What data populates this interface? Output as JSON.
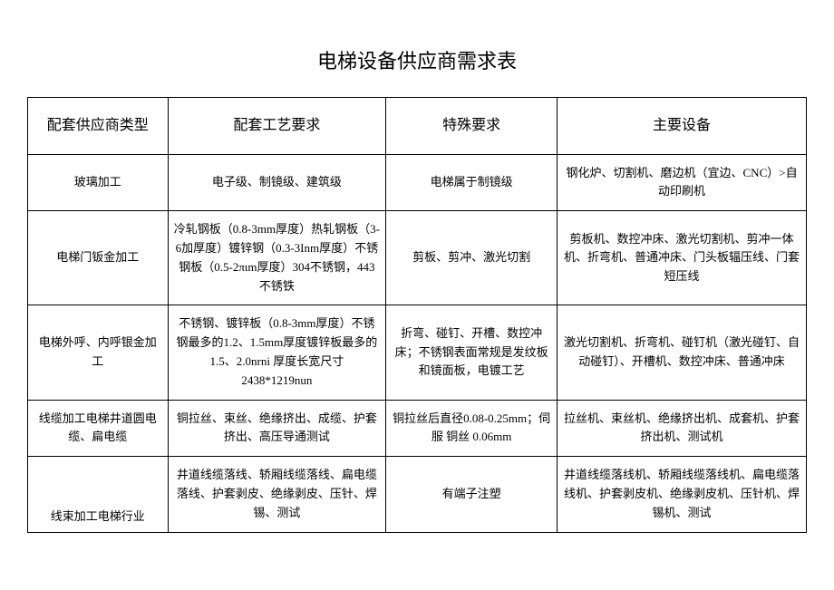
{
  "title": "电梯设备供应商需求表",
  "headers": {
    "col1": "配套供应商类型",
    "col2": "配套工艺要求",
    "col3": "特殊要求",
    "col4": "主要设备"
  },
  "rows": [
    {
      "c1": "玻璃加工",
      "c2": "电子级、制镜级、建筑级",
      "c3": "电梯属于制镜级",
      "c4": "钢化炉、切割机、磨边机（宜边、CNC）>自动印刷机"
    },
    {
      "c1": "电梯门钣金加工",
      "c2": "冷轧钢板（0.8-3mm厚度）热轧钢板（3-6加厚度）镀锌钢（0.3-3Inm厚度）不锈钢板（0.5-2πιm厚度）304不锈钢，443不锈铁",
      "c3": "剪板、剪冲、激光切割",
      "c4": "剪板机、数控冲床、激光切割机、剪冲一体机、折弯机、普通冲床、门头板辐压线、门套短压线"
    },
    {
      "c1": "电梯外呼、内呼银金加工",
      "c2": "不锈钢、镀锌板（0.8-3mm厚度）不锈钢最多的1.2、1.5mm厚度镀锌板最多的1.5、2.0nrni 厚度长宽尺寸 2438*1219nun",
      "c3": "折弯、碰钉、开槽、数控冲床；不锈钢表面常规是发纹板和镜面板，电镀工艺",
      "c4": "激光切割机、折弯机、碰钉机（激光碰钉、自动碰钉）、开槽机、数控冲床、普通冲床"
    },
    {
      "c1": "线缆加工电梯井道圆电缆、扁电缆",
      "c2": "铜拉丝、束丝、绝缘挤出、成缆、护套挤出、高压导通测试",
      "c3": "铜拉丝后直径0.08-0.25mm；伺服\n铜丝 0.06mm",
      "c4": "拉丝机、束丝机、绝缘挤出机、成套机、护套挤出机、测试机"
    },
    {
      "c1": "线束加工电梯行业",
      "c2": "井道线缆落线、轿厢线缆落线、扁电缆落线、护套剥皮、绝缘剥皮、压针、焊锡、测试",
      "c3": "有端子注塑",
      "c4": "井道线缆落线机、轿厢线缆落线机、扁电缆落线机、护套剥皮机、绝缘剥皮机、压针机、焊锡机、测试"
    }
  ]
}
